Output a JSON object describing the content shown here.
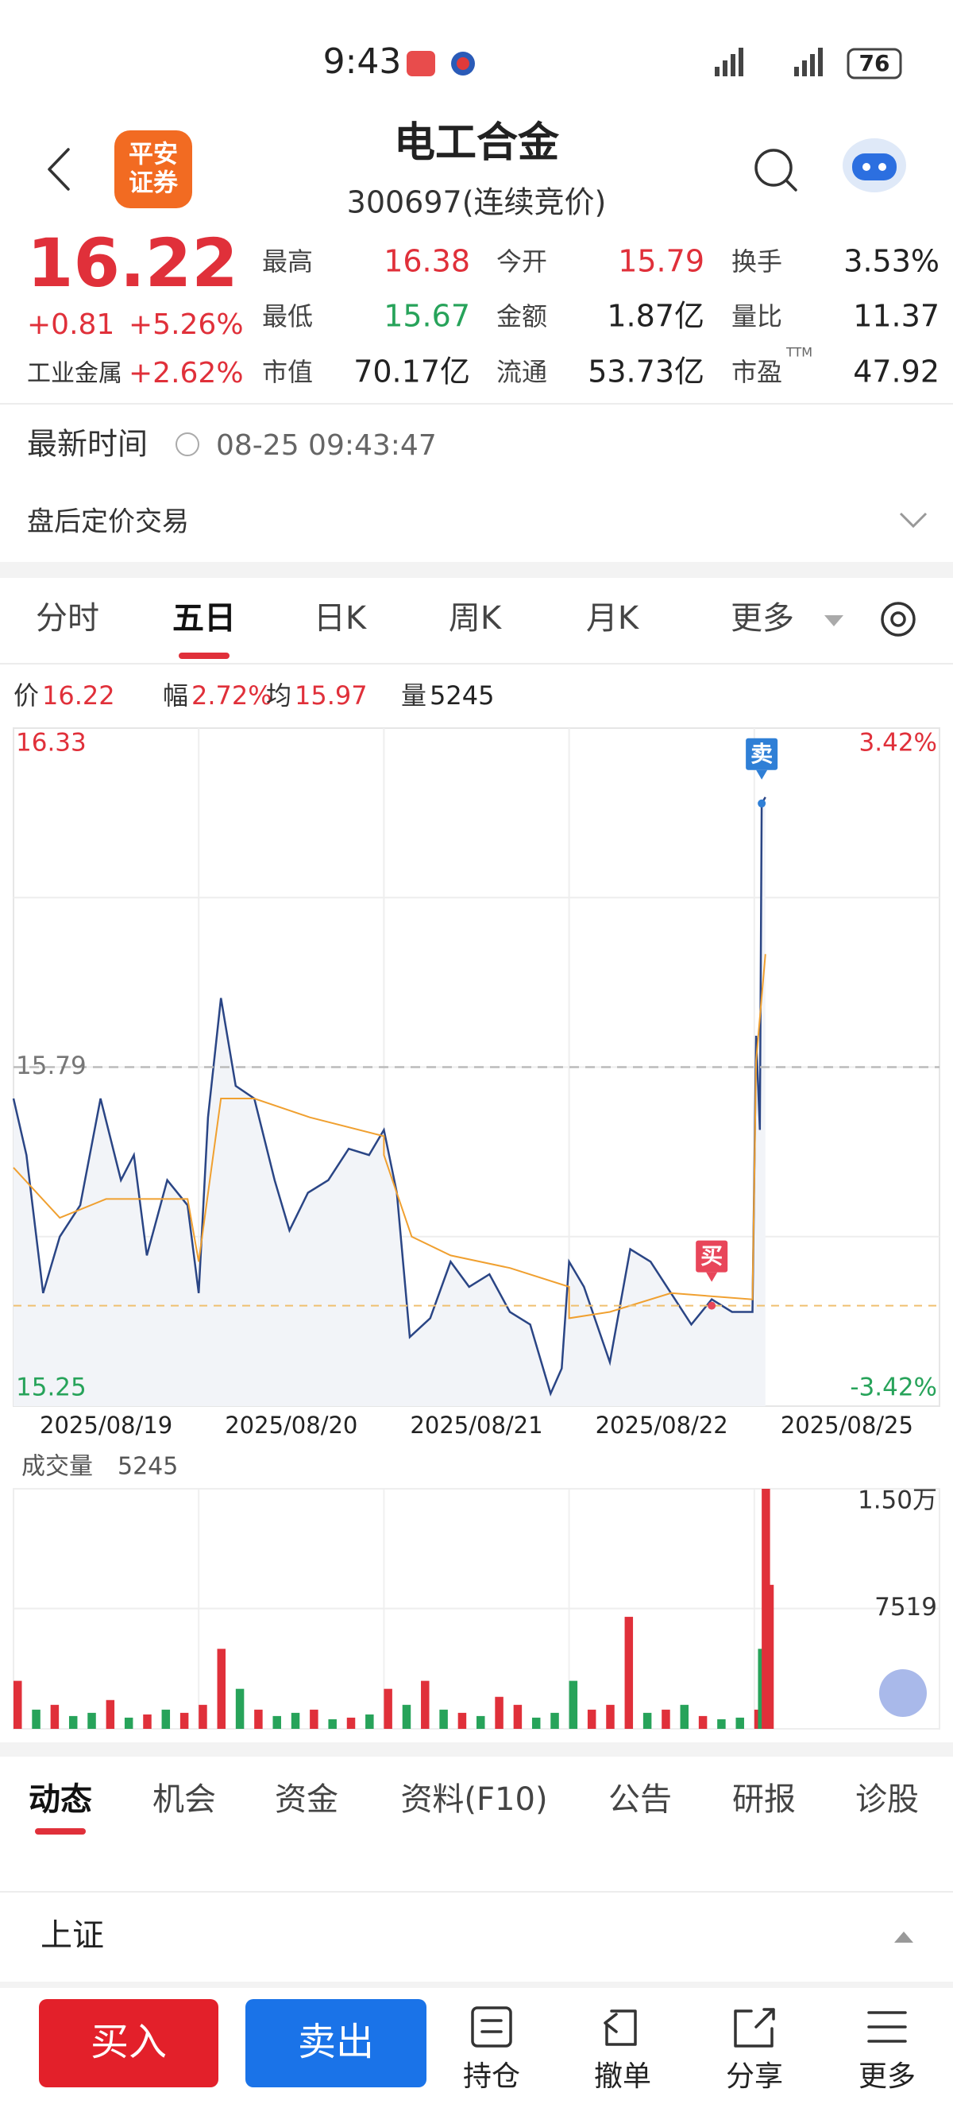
{
  "status_bar": {
    "time": "9:43",
    "battery": "76"
  },
  "header": {
    "logo": [
      "平安",
      "证券"
    ],
    "title": "电工合金",
    "code": "300697(连续竞价)"
  },
  "quote": {
    "price": "16.22",
    "change": "+0.81",
    "change_pct": "+5.26%",
    "sector": "工业金属",
    "sector_pct": "+2.62%",
    "stats": [
      [
        {
          "label": "最高",
          "value": "16.38"
        },
        {
          "label": "今开",
          "value": "15.79"
        },
        {
          "label": "换手",
          "value": "3.53%"
        }
      ],
      [
        {
          "label": "最低",
          "value": "15.67"
        },
        {
          "label": "金额",
          "value": "1.87亿"
        },
        {
          "label": "量比",
          "value": "11.37"
        }
      ],
      [
        {
          "label": "市值",
          "value": "70.17亿"
        },
        {
          "label": "流通",
          "value": "53.73亿"
        },
        {
          "label": "市盈",
          "value": "47.92",
          "sup": "TTM"
        }
      ]
    ]
  },
  "latest_time": {
    "label": "最新时间",
    "value": "08-25 09:43:47"
  },
  "after_hours": "盘后定价交易",
  "period_tabs": [
    "分时",
    "五日",
    "日K",
    "周K",
    "月K",
    "更多"
  ],
  "info_line": [
    {
      "label": "价",
      "value": "16.22"
    },
    {
      "label": "幅",
      "value": "2.72%"
    },
    {
      "label": "均",
      "value": "15.97"
    },
    {
      "label": "量",
      "value": "5245"
    }
  ],
  "chart_data": [
    {
      "type": "line",
      "categories": [
        "2025/08/19",
        "2025/08/20",
        "2025/08/21",
        "2025/08/22",
        "2025/08/25"
      ],
      "xlim": [
        0,
        5
      ],
      "ylim": [
        15.25,
        16.33
      ],
      "yticks": [
        16.33,
        15.79,
        15.25
      ],
      "y2lim": [
        -3.42,
        3.42
      ],
      "y2ticks": [
        {
          "value": 3.42,
          "label": "3.42%"
        },
        {
          "value": -3.42,
          "label": "-3.42%"
        }
      ],
      "prev_close": 15.79,
      "cost_line": {
        "value": 15.41,
        "color": "#f0c070"
      },
      "series": [
        {
          "color": "#2a4585",
          "x": [
            0,
            0.07,
            0.16,
            0.25,
            0.36,
            0.47,
            0.58,
            0.65,
            0.72,
            0.83,
            0.94,
            1.0,
            1.05,
            1.12,
            1.2,
            1.3,
            1.41,
            1.49,
            1.59,
            1.7,
            1.81,
            1.92,
            2.0,
            2.07,
            2.14,
            2.25,
            2.36,
            2.46,
            2.57,
            2.68,
            2.79,
            2.9,
            2.96,
            3.0,
            3.08,
            3.22,
            3.33,
            3.44,
            3.55,
            3.66,
            3.77,
            3.88,
            3.99,
            4.01,
            4.03,
            4.04,
            4.06
          ],
          "values": [
            15.74,
            15.65,
            15.43,
            15.52,
            15.57,
            15.74,
            15.61,
            15.65,
            15.49,
            15.61,
            15.57,
            15.43,
            15.71,
            15.9,
            15.76,
            15.74,
            15.61,
            15.53,
            15.59,
            15.61,
            15.66,
            15.65,
            15.69,
            15.59,
            15.36,
            15.39,
            15.48,
            15.44,
            15.46,
            15.4,
            15.38,
            15.27,
            15.31,
            15.48,
            15.44,
            15.32,
            15.5,
            15.48,
            15.43,
            15.38,
            15.42,
            15.4,
            15.4,
            15.84,
            15.69,
            16.21,
            16.22
          ]
        },
        {
          "color": "#f0a030",
          "x": [
            0,
            0.25,
            0.5,
            0.94,
            1.0,
            1.12,
            1.3,
            1.6,
            2.0,
            2.0,
            2.15,
            2.36,
            2.68,
            3.0,
            3.0,
            3.22,
            3.55,
            3.99,
            4.01,
            4.06
          ],
          "values": [
            15.63,
            15.55,
            15.58,
            15.58,
            15.48,
            15.74,
            15.74,
            15.71,
            15.68,
            15.65,
            15.52,
            15.49,
            15.47,
            15.44,
            15.39,
            15.4,
            15.43,
            15.42,
            15.8,
            15.97
          ]
        }
      ],
      "trades": [
        {
          "label": "买",
          "x": 3.77,
          "value": 15.41,
          "color": "#e8465a"
        },
        {
          "label": "卖",
          "x": 4.04,
          "value": 16.21,
          "color": "#2f7fd6"
        }
      ]
    },
    {
      "type": "bar",
      "title": "成交量",
      "latest_volume": 5245,
      "xlim": [
        0,
        5
      ],
      "ylim": [
        0,
        15000
      ],
      "yticks": [
        {
          "value": 15000,
          "label": "1.50万"
        },
        7519
      ],
      "x": [
        0,
        0.1,
        0.2,
        0.3,
        0.4,
        0.5,
        0.6,
        0.7,
        0.8,
        0.9,
        1.0,
        1.1,
        1.2,
        1.3,
        1.4,
        1.5,
        1.6,
        1.7,
        1.8,
        1.9,
        2.0,
        2.1,
        2.2,
        2.3,
        2.4,
        2.5,
        2.6,
        2.7,
        2.8,
        2.9,
        3.0,
        3.1,
        3.2,
        3.3,
        3.4,
        3.5,
        3.6,
        3.7,
        3.8,
        3.9,
        4.0,
        4.02,
        4.04,
        4.06
      ],
      "values": [
        3000,
        1200,
        1500,
        800,
        1000,
        1800,
        700,
        900,
        1200,
        1000,
        1500,
        5000,
        2500,
        1200,
        800,
        1000,
        1200,
        600,
        700,
        900,
        2500,
        1500,
        3000,
        1200,
        1000,
        800,
        2000,
        1500,
        700,
        1000,
        3000,
        1200,
        1500,
        7000,
        1000,
        1200,
        1500,
        800,
        600,
        700,
        1200,
        5000,
        15000,
        9000
      ],
      "colors": [
        "#e0303a",
        "#27a35a",
        "#e0303a",
        "#27a35a",
        "#27a35a",
        "#e0303a",
        "#27a35a",
        "#e0303a",
        "#27a35a",
        "#e0303a",
        "#e0303a",
        "#e0303a",
        "#27a35a",
        "#e0303a",
        "#27a35a",
        "#27a35a",
        "#e0303a",
        "#27a35a",
        "#e0303a",
        "#27a35a",
        "#e0303a",
        "#27a35a",
        "#e0303a",
        "#27a35a",
        "#e0303a",
        "#27a35a",
        "#e0303a",
        "#e0303a",
        "#27a35a",
        "#27a35a",
        "#27a35a",
        "#e0303a",
        "#e0303a",
        "#e0303a",
        "#27a35a",
        "#e0303a",
        "#27a35a",
        "#e0303a",
        "#27a35a",
        "#27a35a",
        "#e0303a",
        "#27a35a",
        "#e0303a",
        "#e0303a"
      ]
    }
  ],
  "content_tabs": [
    "动态",
    "机会",
    "资金",
    "资料(F10)",
    "公告",
    "研报",
    "诊股"
  ],
  "section": "上证",
  "actions": {
    "buy": "买入",
    "sell": "卖出",
    "tools": [
      "持仓",
      "撤单",
      "分享",
      "更多"
    ]
  }
}
